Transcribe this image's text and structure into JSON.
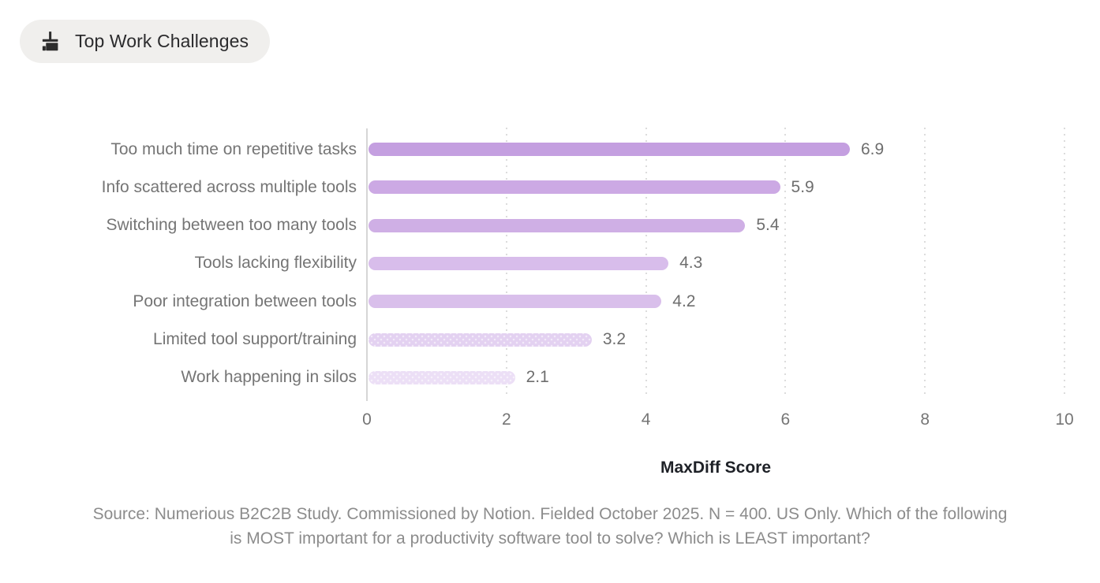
{
  "header": {
    "label": "Top Work Challenges",
    "icon": "broom-icon"
  },
  "chart_data": {
    "type": "bar",
    "orientation": "horizontal",
    "title": "Top Work Challenges",
    "categories": [
      "Too much time on repetitive tasks",
      "Info scattered across multiple tools",
      "Switching between too many tools",
      "Tools lacking flexibility",
      "Poor integration between tools",
      "Limited tool support/training",
      "Work happening in silos"
    ],
    "values": [
      6.9,
      5.9,
      5.4,
      4.3,
      4.2,
      3.2,
      2.1
    ],
    "value_labels": [
      "6.9",
      "5.9",
      "5.4",
      "4.3",
      "4.2",
      "3.2",
      "2.1"
    ],
    "bar_colors": [
      "#c49fe0",
      "#cca9e4",
      "#cfafe5",
      "#d8bdeb",
      "#d9bfeb",
      "#e3d1f1",
      "#ecdff6"
    ],
    "dotted_bars": [
      false,
      false,
      false,
      false,
      false,
      true,
      true
    ],
    "xlabel": "MaxDiff Score",
    "xlim": [
      0,
      10
    ],
    "xticks": [
      0,
      2,
      4,
      6,
      8,
      10
    ],
    "grid": "vertical-dotted",
    "legend": "none"
  },
  "footer": {
    "source": "Source: Numerious B2C2B Study. Commissioned by Notion. Fielded October 2025. N = 400. US Only. Which of the following is MOST important for a productivity software tool to solve? Which is LEAST important?"
  },
  "colors": {
    "chip_bg": "#f0efed",
    "chip_text": "#2b2b2d",
    "axis_line": "#d6d6d6",
    "gridline": "#dcdcdc",
    "category_text": "#757575",
    "value_text": "#6e6e6e",
    "tick_text": "#757575",
    "axis_title_text": "#1e2127",
    "source_text": "#8c8c8c"
  }
}
